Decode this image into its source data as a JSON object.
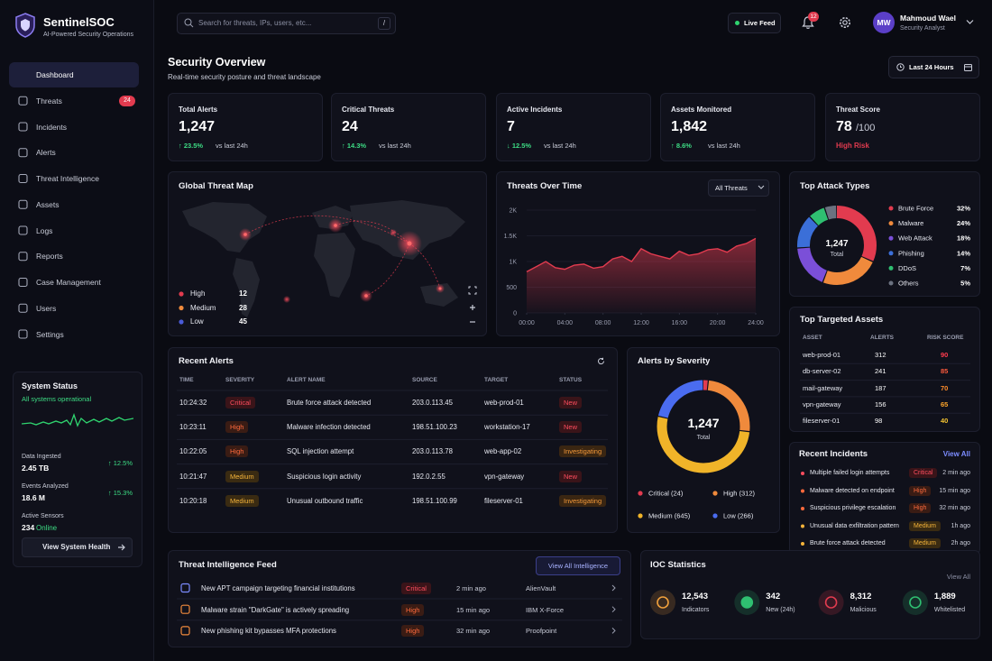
{
  "brand": {
    "name": "SentinelSOC",
    "tagline": "AI-Powered Security Operations"
  },
  "nav": [
    {
      "label": "Dashboard",
      "active": true
    },
    {
      "label": "Threats",
      "badge": 24
    },
    {
      "label": "Incidents"
    },
    {
      "label": "Alerts"
    },
    {
      "label": "Threat Intelligence"
    },
    {
      "label": "Assets"
    },
    {
      "label": "Logs"
    },
    {
      "label": "Reports"
    },
    {
      "label": "Case Management"
    },
    {
      "label": "Users"
    },
    {
      "label": "Settings"
    }
  ],
  "system_status": {
    "title": "System Status",
    "status": "All systems operational",
    "metrics": [
      {
        "label": "Data Ingested",
        "value": "2.45 TB",
        "change": "↑ 12.5%"
      },
      {
        "label": "Events Analyzed",
        "value": "18.6 M",
        "change": "↑ 15.3%"
      },
      {
        "label": "Active Sensors",
        "value": "234",
        "unit": "Online"
      }
    ],
    "button": "View System Health"
  },
  "header": {
    "search_placeholder": "Search for threats, IPs, users, etc...",
    "search_key": "/",
    "live_feed": "Live Feed",
    "notifications": 12,
    "user": {
      "initials": "MW",
      "name": "Mahmoud Wael",
      "role": "Security Analyst"
    }
  },
  "page": {
    "title": "Security Overview",
    "subtitle": "Real-time security posture and threat landscape",
    "range": "Last 24 Hours"
  },
  "kpis": [
    {
      "label": "Total Alerts",
      "value": "1,247",
      "change": "↑ 23.5%",
      "note": "vs last 24h",
      "color": "#e23b4f"
    },
    {
      "label": "Critical Threats",
      "value": "24",
      "change": "↑ 14.3%",
      "note": "vs last 24h",
      "color": "#e23b4f"
    },
    {
      "label": "Active Incidents",
      "value": "7",
      "change": "↓ 12.5%",
      "note": "vs last 24h",
      "color": "#f0a03c"
    },
    {
      "label": "Assets Monitored",
      "value": "1,842",
      "change": "↑ 8.6%",
      "note": "vs last 24h",
      "color": "#3b82f6"
    }
  ],
  "threat_score": {
    "label": "Threat Score",
    "value": 78,
    "max": 100,
    "max_label": "/100",
    "status": "High Risk",
    "color": "#e23b4f"
  },
  "threat_map": {
    "title": "Global Threat Map",
    "legend": [
      {
        "name": "High",
        "count": 12,
        "color": "#e23b4f"
      },
      {
        "name": "Medium",
        "count": 28,
        "color": "#f08a3c"
      },
      {
        "name": "Low",
        "count": 45,
        "color": "#4a5bd8"
      }
    ]
  },
  "threats_over_time": {
    "type": "area",
    "title": "Threats Over Time",
    "filter": "All Threats",
    "x": [
      0,
      1,
      2,
      3,
      4,
      5,
      6,
      7,
      8,
      9,
      10,
      11,
      12,
      13,
      14,
      15,
      16,
      17,
      18,
      19,
      20,
      21,
      22,
      23,
      24
    ],
    "values": [
      800,
      900,
      1000,
      880,
      850,
      930,
      950,
      870,
      900,
      1050,
      1100,
      1000,
      1250,
      1150,
      1100,
      1050,
      1200,
      1120,
      1150,
      1230,
      1250,
      1180,
      1300,
      1350,
      1450
    ],
    "xlim": [
      0,
      24
    ],
    "xticks": [
      {
        "value": 0,
        "label": "00:00"
      },
      {
        "value": 4,
        "label": "04:00"
      },
      {
        "value": 8,
        "label": "08:00"
      },
      {
        "value": 12,
        "label": "12:00"
      },
      {
        "value": 16,
        "label": "16:00"
      },
      {
        "value": 20,
        "label": "20:00"
      },
      {
        "value": 24,
        "label": "24:00"
      }
    ],
    "ylim": [
      0,
      2000
    ],
    "yticks": [
      0,
      500,
      {
        "value": 1000,
        "label": "1K"
      },
      {
        "value": 1500,
        "label": "1.5K"
      },
      {
        "value": 2000,
        "label": "2K"
      }
    ],
    "color": "#e23b4f"
  },
  "attack_types": {
    "type": "donut",
    "title": "Top Attack Types",
    "center_value": "1,247",
    "center_label": "Total",
    "categories": [
      "Brute Force",
      "Malware",
      "Web Attack",
      "Phishing",
      "DDoS",
      "Others"
    ],
    "values": [
      32,
      24,
      18,
      14,
      7,
      5
    ],
    "value_labels": [
      "32%",
      "24%",
      "18%",
      "14%",
      "7%",
      "5%"
    ],
    "colors": [
      "#e23b4f",
      "#f08a3c",
      "#7b4fd8",
      "#3b6fd8",
      "#2fbf71",
      "#6b7280"
    ]
  },
  "targeted_assets": {
    "title": "Top Targeted Assets",
    "columns": [
      "ASSET",
      "ALERTS",
      "RISK SCORE"
    ],
    "rows": [
      [
        "web-prod-01",
        312,
        90
      ],
      [
        "db-server-02",
        241,
        85
      ],
      [
        "mail-gateway",
        187,
        70
      ],
      [
        "vpn-gateway",
        156,
        65
      ],
      [
        "fileserver-01",
        98,
        40
      ]
    ],
    "risk_colors": [
      "#ff3b4e",
      "#ff5a3c",
      "#ff8c2a",
      "#ffa62a",
      "#f5c431"
    ]
  },
  "recent_alerts": {
    "title": "Recent Alerts",
    "columns": [
      "TIME",
      "SEVERITY",
      "ALERT NAME",
      "SOURCE",
      "TARGET",
      "STATUS"
    ],
    "rows": [
      [
        "10:24:32",
        "Critical",
        "Brute force attack detected",
        "203.0.113.45",
        "web-prod-01",
        "New"
      ],
      [
        "10:23:11",
        "High",
        "Malware infection detected",
        "198.51.100.23",
        "workstation-17",
        "New"
      ],
      [
        "10:22:05",
        "High",
        "SQL injection attempt",
        "203.0.113.78",
        "web-app-02",
        "Investigating"
      ],
      [
        "10:21:47",
        "Medium",
        "Suspicious login activity",
        "192.0.2.55",
        "vpn-gateway",
        "New"
      ],
      [
        "10:20:18",
        "Medium",
        "Unusual outbound traffic",
        "198.51.100.99",
        "fileserver-01",
        "Investigating"
      ]
    ]
  },
  "alerts_by_severity": {
    "type": "donut",
    "title": "Alerts by Severity",
    "center_value": "1,247",
    "center_label": "Total",
    "values": [
      24,
      312,
      645,
      266
    ],
    "value_labels": [
      "Critical (24)",
      "High (312)",
      "Medium (645)",
      "Low (266)"
    ],
    "colors": [
      "#e23b4f",
      "#f08a3c",
      "#f0b429",
      "#4a6cf0"
    ]
  },
  "recent_incidents": {
    "title": "Recent Incidents",
    "action": "View All",
    "rows": [
      [
        "Multiple failed login attempts",
        "Critical",
        "2 min ago"
      ],
      [
        "Malware detected on endpoint",
        "High",
        "15 min ago"
      ],
      [
        "Suspicious privilege escalation",
        "High",
        "32 min ago"
      ],
      [
        "Unusual data exfiltration pattern",
        "Medium",
        "1h ago"
      ],
      [
        "Brute force attack detected",
        "Medium",
        "2h ago"
      ]
    ]
  },
  "intel_feed": {
    "title": "Threat Intelligence Feed",
    "action": "View All Intelligence",
    "rows": [
      [
        "New APT campaign targeting financial institutions",
        "Critical",
        "2 min ago",
        "AlienVault"
      ],
      [
        "Malware strain \"DarkGate\" is actively spreading",
        "High",
        "15 min ago",
        "IBM X-Force"
      ],
      [
        "New phishing kit bypasses MFA protections",
        "High",
        "32 min ago",
        "Proofpoint"
      ]
    ]
  },
  "ioc": {
    "title": "IOC Statistics",
    "action": "View All",
    "stats": [
      {
        "value": "12,543",
        "label": "Indicators",
        "color": "#f0a03c"
      },
      {
        "value": "342",
        "label": "New (24h)",
        "color": "#2fbf71"
      },
      {
        "value": "8,312",
        "label": "Malicious",
        "color": "#e23b4f"
      },
      {
        "value": "1,889",
        "label": "Whitelisted",
        "color": "#2fbf71"
      }
    ]
  }
}
